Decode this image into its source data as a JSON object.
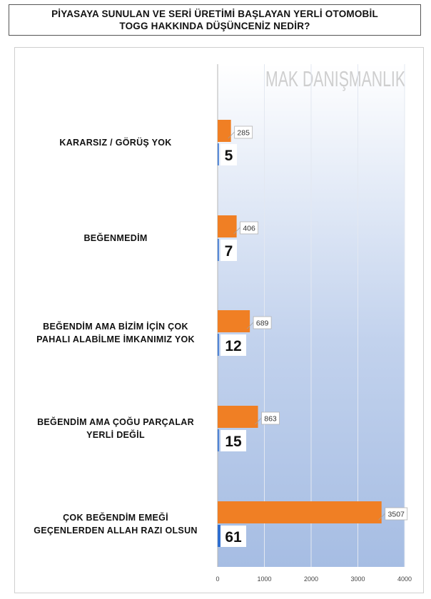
{
  "title": {
    "line1": "PİYASAYA SUNULAN VE SERİ ÜRETİMİ BAŞLAYAN YERLİ OTOMOBİL",
    "line2": "TOGG HAKKINDA DÜŞÜNCENİZ NEDİR?"
  },
  "watermark": "MAK DANIŞMANLIK",
  "chart_data": {
    "type": "bar",
    "orientation": "horizontal",
    "categories": [
      "KARARSIZ / GÖRÜŞ YOK",
      "BEĞENMEDİM",
      "BEĞENDİM AMA BİZİM İÇİN ÇOK PAHALI ALABİLME İMKANIMIZ YOK",
      "BEĞENDİM AMA ÇOĞU PARÇALAR YERLİ DEĞİL",
      "ÇOK BEĞENDİM EMEĞİ GEÇENLERDEN ALLAH RAZI OLSUN"
    ],
    "category_label_lines": [
      [
        "KARARSIZ / GÖRÜŞ YOK"
      ],
      [
        "BEĞENMEDİM"
      ],
      [
        "BEĞENDİM AMA BİZİM İÇİN ÇOK",
        "PAHALI ALABİLME İMKANIMIZ YOK"
      ],
      [
        "BEĞENDİM AMA ÇOĞU PARÇALAR",
        "YERLİ DEĞİL"
      ],
      [
        "ÇOK BEĞENDİM EMEĞİ",
        "GEÇENLERDEN ALLAH RAZI OLSUN"
      ]
    ],
    "series": [
      {
        "values": [
          285,
          406,
          689,
          863,
          3507
        ],
        "color": "#f07f24"
      },
      {
        "values": [
          5,
          7,
          12,
          15,
          61
        ],
        "color": "#2f6fd0"
      }
    ],
    "xlim": [
      0,
      4000
    ],
    "xticks": [
      0,
      1000,
      2000,
      3000,
      4000
    ],
    "grid": true,
    "legend": "none"
  }
}
